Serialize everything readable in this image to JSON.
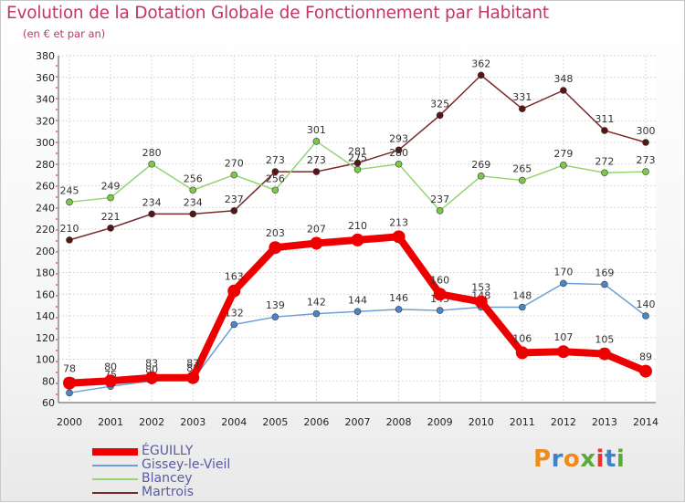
{
  "title": "Evolution de la Dotation Globale de Fonctionnement par Habitant",
  "subtitle": "(en € et par an)",
  "logo": {
    "text": "Proxiti",
    "colors": [
      "#f08a1c",
      "#3f82c8",
      "#f08a1c",
      "#5bab3c",
      "#e8342c",
      "#3f82c8",
      "#5bab3c"
    ]
  },
  "chart_data": {
    "type": "line",
    "x": [
      2000,
      2001,
      2002,
      2003,
      2004,
      2005,
      2006,
      2007,
      2008,
      2009,
      2010,
      2011,
      2012,
      2013,
      2014
    ],
    "ylim": [
      60,
      380
    ],
    "yticks": [
      60,
      80,
      100,
      120,
      140,
      160,
      180,
      200,
      220,
      240,
      260,
      280,
      300,
      320,
      340,
      360,
      380
    ],
    "grid": true,
    "legend_position": "bottom-left",
    "series": [
      {
        "name": "Martrois",
        "color": "#7a2a2a",
        "marker": "#5a1414",
        "values": [
          210,
          221,
          234,
          234,
          237,
          273,
          273,
          281,
          293,
          325,
          362,
          331,
          348,
          311,
          300
        ]
      },
      {
        "name": "Blancey",
        "color": "#95d46e",
        "marker": "#7cc84a",
        "values": [
          245,
          249,
          280,
          256,
          270,
          256,
          301,
          275,
          280,
          237,
          269,
          265,
          279,
          272,
          273
        ]
      },
      {
        "name": "Gissey-le-Vieil",
        "color": "#6b9fd6",
        "marker": "#4a86c8",
        "values": [
          69,
          75,
          80,
          81,
          132,
          139,
          142,
          144,
          146,
          145,
          148,
          148,
          170,
          169,
          140
        ]
      },
      {
        "name": "ÉGUILLY",
        "color": "#ee0000",
        "marker": "#ee0000",
        "values": [
          78,
          80,
          83,
          83,
          163,
          203,
          207,
          210,
          213,
          160,
          153,
          106,
          107,
          105,
          89
        ]
      }
    ]
  },
  "legend": [
    {
      "name": "ÉGUILLY",
      "color": "#ee0000",
      "thickness": 8
    },
    {
      "name": "Gissey-le-Vieil",
      "color": "#6b9fd6",
      "thickness": 2
    },
    {
      "name": "Blancey",
      "color": "#95d46e",
      "thickness": 2
    },
    {
      "name": "Martrois",
      "color": "#7a2a2a",
      "thickness": 2
    }
  ]
}
